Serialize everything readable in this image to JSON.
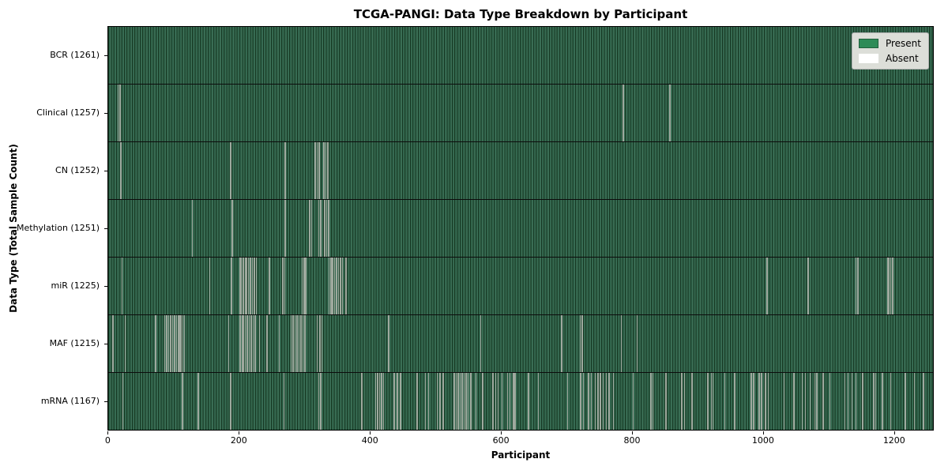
{
  "chart_data": {
    "type": "heatmap",
    "title": "TCGA-PANGI: Data Type Breakdown by Participant",
    "xlabel": "Participant",
    "ylabel": "Data Type (Total Sample Count)",
    "n_participants": 1261,
    "xlim": [
      -0.5,
      1260.5
    ],
    "xticks": [
      0,
      200,
      400,
      600,
      800,
      1000,
      1200
    ],
    "grid": false,
    "legend_position": "upper right",
    "legend": {
      "entries": [
        {
          "label": "Present",
          "color": "#2e8b57"
        },
        {
          "label": "Absent",
          "color": "#ffffff"
        }
      ]
    },
    "colors": {
      "present": "#2e8b57",
      "absent": "#ffffff",
      "row_texture_dark": "#16371f",
      "row_texture_mid": "#2e6149",
      "row_texture_light": "#3d7158",
      "absent_stripe_rendered": "#a8b0a6",
      "legend_bg": "#dcded8"
    },
    "rows": [
      {
        "label": "BCR",
        "count": 1261,
        "absent": []
      },
      {
        "label": "Clinical",
        "count": 1257,
        "absent": [
          14,
          17,
          785,
          856
        ]
      },
      {
        "label": "CN",
        "count": 1252,
        "absent": [
          18,
          186,
          269,
          315,
          318,
          321,
          328,
          331,
          334
        ]
      },
      {
        "label": "Methylation",
        "count": 1251,
        "absent": [
          127,
          188,
          269,
          306,
          309,
          320,
          323,
          329,
          332,
          335
        ]
      },
      {
        "label": "miR",
        "count": 1225,
        "absent": [
          20,
          154,
          187,
          200,
          202,
          205,
          208,
          210,
          213,
          216,
          219,
          222,
          225,
          245,
          265,
          268,
          295,
          298,
          300,
          336,
          339,
          341,
          344,
          347,
          350,
          353,
          356,
          362,
          1004,
          1067,
          1140,
          1143,
          1188,
          1190,
          1193,
          1196
        ]
      },
      {
        "label": "MAF",
        "count": 1215,
        "absent": [
          6,
          25,
          71,
          85,
          88,
          91,
          94,
          97,
          100,
          103,
          106,
          108,
          110,
          113,
          115,
          183,
          200,
          203,
          205,
          208,
          211,
          214,
          217,
          220,
          223,
          230,
          241,
          260,
          278,
          281,
          284,
          287,
          290,
          293,
          296,
          299,
          318,
          322,
          325,
          427,
          567,
          691,
          719,
          722,
          782,
          806
        ]
      },
      {
        "label": "mRNA",
        "count": 1167,
        "absent": [
          21,
          112,
          136,
          186,
          267,
          320,
          323,
          386,
          407,
          410,
          413,
          416,
          419,
          435,
          440,
          445,
          470,
          483,
          488,
          501,
          505,
          510,
          527,
          530,
          533,
          536,
          539,
          542,
          545,
          548,
          552,
          560,
          570,
          586,
          590,
          594,
          600,
          608,
          612,
          617,
          620,
          640,
          655,
          700,
          720,
          724,
          732,
          736,
          742,
          746,
          750,
          754,
          759,
          763,
          770,
          800,
          827,
          830,
          850,
          874,
          878,
          890,
          914,
          919,
          922,
          940,
          955,
          980,
          984,
          992,
          996,
          1002,
          1006,
          1030,
          1045,
          1058,
          1063,
          1070,
          1077,
          1080,
          1090,
          1100,
          1123,
          1128,
          1134,
          1140,
          1150,
          1167,
          1170,
          1180,
          1193,
          1215,
          1229,
          1243
        ]
      }
    ]
  }
}
